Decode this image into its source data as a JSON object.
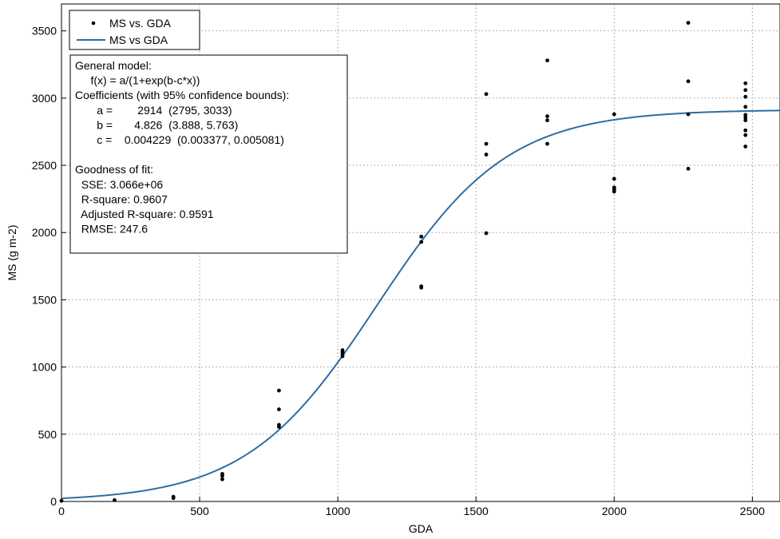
{
  "chart_data": {
    "type": "scatter",
    "xlabel": "GDA",
    "ylabel": "MS (g m-2)",
    "xlim": [
      0,
      2600
    ],
    "ylim": [
      0,
      3700
    ],
    "x_ticks": [
      0,
      500,
      1000,
      1500,
      2000,
      2500
    ],
    "y_ticks": [
      0,
      500,
      1000,
      1500,
      2000,
      2500,
      3000,
      3500
    ],
    "grid": true,
    "legend_placement": "top-left",
    "colors": {
      "points": "#000000",
      "fit_line": "#2e6da4"
    },
    "series": [
      {
        "name": "MS vs. GDA",
        "kind": "points",
        "points": [
          [
            0,
            5
          ],
          [
            192,
            10
          ],
          [
            405,
            25
          ],
          [
            405,
            35
          ],
          [
            582,
            165
          ],
          [
            582,
            190
          ],
          [
            582,
            205
          ],
          [
            787,
            555
          ],
          [
            787,
            570
          ],
          [
            787,
            685
          ],
          [
            787,
            825
          ],
          [
            1017,
            1080
          ],
          [
            1017,
            1095
          ],
          [
            1017,
            1110
          ],
          [
            1017,
            1125
          ],
          [
            1302,
            1590
          ],
          [
            1302,
            1600
          ],
          [
            1302,
            1930
          ],
          [
            1302,
            1970
          ],
          [
            1537,
            1995
          ],
          [
            1537,
            2580
          ],
          [
            1537,
            2660
          ],
          [
            1537,
            3030
          ],
          [
            1758,
            2660
          ],
          [
            1758,
            2835
          ],
          [
            1758,
            2865
          ],
          [
            1758,
            3280
          ],
          [
            2000,
            2305
          ],
          [
            2000,
            2320
          ],
          [
            2000,
            2335
          ],
          [
            2000,
            2400
          ],
          [
            2000,
            2880
          ],
          [
            2268,
            2475
          ],
          [
            2268,
            2880
          ],
          [
            2268,
            3125
          ],
          [
            2268,
            3560
          ],
          [
            2475,
            2640
          ],
          [
            2475,
            2725
          ],
          [
            2475,
            2760
          ],
          [
            2475,
            2835
          ],
          [
            2475,
            2855
          ],
          [
            2475,
            2875
          ],
          [
            2475,
            2935
          ],
          [
            2475,
            3010
          ],
          [
            2475,
            3060
          ],
          [
            2475,
            3110
          ]
        ]
      },
      {
        "name": "MS vs GDA",
        "kind": "fit",
        "model": {
          "a": 2914,
          "b": 4.826,
          "c": 0.004229
        }
      }
    ],
    "annotation": {
      "lines": [
        "General model:",
        "     f(x) = a/(1+exp(b-c*x))",
        "Coefficients (with 95% confidence bounds):",
        "       a =        2914  (2795, 3033)",
        "       b =       4.826  (3.888, 5.763)",
        "       c =    0.004229  (0.003377, 0.005081)",
        "",
        "Goodness of fit:",
        "  SSE: 3.066e+06",
        "  R-square: 0.9607",
        "  Adjusted R-square: 0.9591",
        "  RMSE: 247.6"
      ]
    }
  }
}
